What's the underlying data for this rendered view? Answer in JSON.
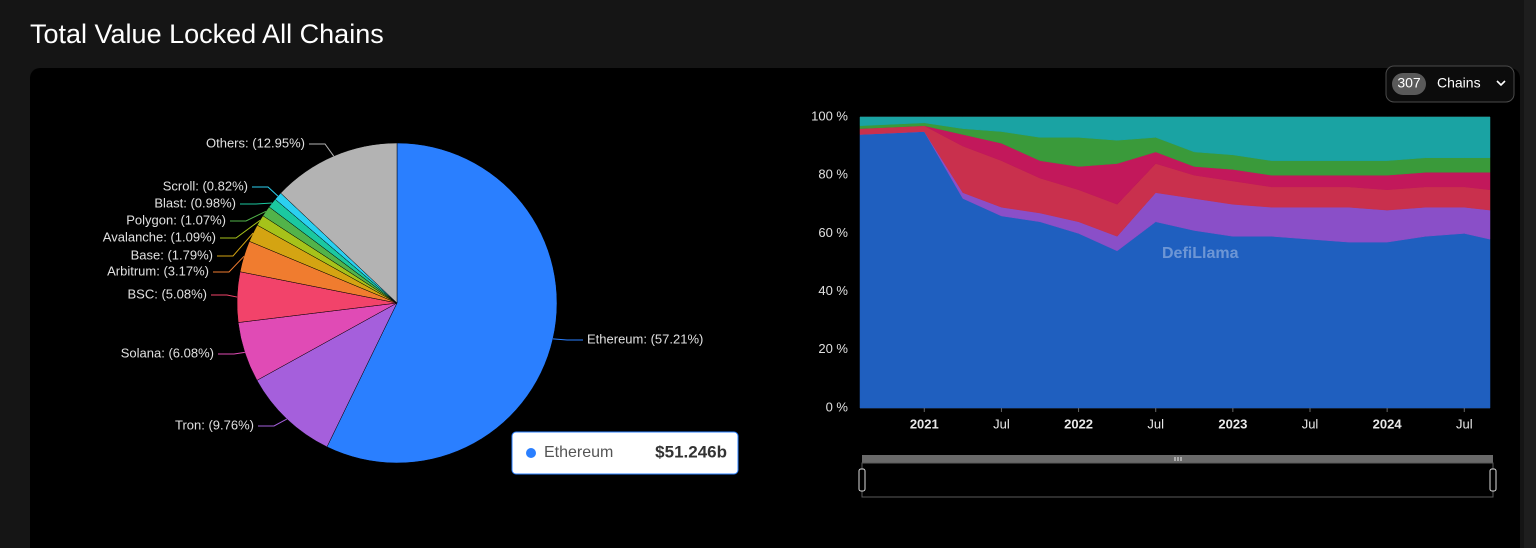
{
  "header": {
    "title": "Total Value Locked All Chains"
  },
  "controls": {
    "chain_count": 307,
    "chain_label": "Chains"
  },
  "tooltip": {
    "label": "Ethereum",
    "value": "$51.246b"
  },
  "chart_data": [
    {
      "type": "pie",
      "values": [
        57.21,
        9.76,
        6.08,
        5.08,
        3.17,
        1.79,
        1.09,
        1.07,
        0.98,
        0.82,
        12.95
      ],
      "value_labels": [
        "Ethereum: (57.21%)",
        "Tron: (9.76%)",
        "Solana: (6.08%)",
        "BSC: (5.08%)",
        "Arbitrum: (3.17%)",
        "Base: (1.79%)",
        "Avalanche: (1.09%)",
        "Polygon: (1.07%)",
        "Blast: (0.98%)",
        "Scroll: (0.82%)",
        "Others: (12.95%)"
      ],
      "colors": [
        "#2a7fff",
        "#a55fdc",
        "#e04bb5",
        "#f2436a",
        "#f07c2f",
        "#d4a412",
        "#a6c21a",
        "#52b34a",
        "#1bc8a0",
        "#2bd0f0",
        "#b3b3b3"
      ]
    },
    {
      "type": "area",
      "stacked": true,
      "watermark": "DefiLlama",
      "x": [
        "2020-08",
        "2021-01",
        "2021-04",
        "2021-07",
        "2021-10",
        "2022-01",
        "2022-04",
        "2022-07",
        "2022-10",
        "2023-01",
        "2023-04",
        "2023-07",
        "2023-10",
        "2024-01",
        "2024-04",
        "2024-07",
        "2024-09"
      ],
      "series": [
        {
          "color": "#1f5fbf",
          "values": [
            94,
            95,
            72,
            66,
            64,
            60,
            54,
            64,
            61,
            59,
            59,
            58,
            57,
            57,
            59,
            60,
            58
          ]
        },
        {
          "color": "#8a4fc8",
          "values": [
            0,
            0,
            2,
            3,
            3,
            4,
            5,
            10,
            11,
            11,
            10,
            11,
            12,
            11,
            10,
            9,
            10
          ]
        },
        {
          "color": "#c9304d",
          "values": [
            2,
            2,
            16,
            16,
            12,
            11,
            11,
            10,
            8,
            8,
            7,
            7,
            7,
            7,
            7,
            7,
            7
          ]
        },
        {
          "color": "#c2185b",
          "values": [
            0,
            0,
            4,
            6,
            6,
            8,
            14,
            4,
            3,
            4,
            4,
            4,
            4,
            5,
            5,
            5,
            6
          ]
        },
        {
          "color": "#3a9a3a",
          "values": [
            1,
            1,
            2,
            4,
            8,
            10,
            8,
            5,
            5,
            5,
            5,
            5,
            5,
            5,
            5,
            5,
            5
          ]
        },
        {
          "color": "#1aa3a3",
          "values": [
            3,
            2,
            4,
            5,
            7,
            7,
            8,
            7,
            12,
            13,
            15,
            15,
            15,
            15,
            14,
            14,
            14
          ]
        }
      ],
      "xlim": [
        "2020-08",
        "2024-09"
      ],
      "xticks": [
        {
          "value": "2021-01",
          "label": "2021"
        },
        {
          "value": "2021-07",
          "label": "Jul"
        },
        {
          "value": "2022-01",
          "label": "2022"
        },
        {
          "value": "2022-07",
          "label": "Jul"
        },
        {
          "value": "2023-01",
          "label": "2023"
        },
        {
          "value": "2023-07",
          "label": "Jul"
        },
        {
          "value": "2024-01",
          "label": "2024"
        },
        {
          "value": "2024-07",
          "label": "Jul"
        }
      ],
      "ylim": [
        0,
        100
      ],
      "yticks": [
        {
          "value": 0,
          "label": "0 %"
        },
        {
          "value": 20,
          "label": "20 %"
        },
        {
          "value": 40,
          "label": "40 %"
        },
        {
          "value": 60,
          "label": "60 %"
        },
        {
          "value": 80,
          "label": "80 %"
        },
        {
          "value": 100,
          "label": "100 %"
        }
      ],
      "grid": true
    }
  ]
}
